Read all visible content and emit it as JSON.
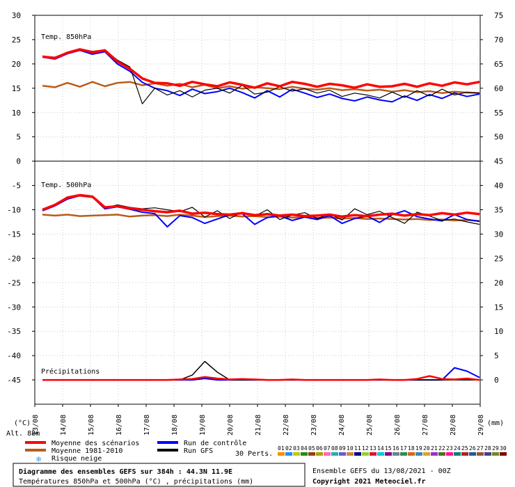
{
  "chart_data": {
    "type": "line",
    "title": "Diagramme des ensembles GEFS sur 384h : 44.3N 11.9E",
    "subtitle": "Températures 850hPa et 500hPa (°C) , précipitations (mm)",
    "left_unit": "(°C)",
    "right_unit": "(mm)",
    "altitude_label": "Alt. 88m",
    "left_ticks": [
      "30",
      "25",
      "20",
      "15",
      "10",
      "5",
      "0",
      "-5",
      "-10",
      "-15",
      "-20",
      "-25",
      "-30",
      "-35",
      "-40",
      "-45"
    ],
    "right_ticks": [
      "75",
      "70",
      "65",
      "60",
      "55",
      "50",
      "45",
      "40",
      "35",
      "30",
      "25",
      "20",
      "15",
      "10",
      "5",
      "0"
    ],
    "ylim": [
      -50,
      30
    ],
    "x_categories": [
      "13/08",
      "14/08",
      "15/08",
      "16/08",
      "17/08",
      "18/08",
      "19/08",
      "20/08",
      "21/08",
      "22/08",
      "23/08",
      "24/08",
      "25/08",
      "26/08",
      "27/08",
      "28/08",
      "29/08"
    ],
    "panels": {
      "t850": "Temp. 850hPa",
      "t500": "Temp. 500hPa",
      "precip": "Précipitations"
    },
    "legend": {
      "mean": "Moyenne des scénarios",
      "clim": "Moyenne 1981-2010",
      "snow": "Risque neige",
      "control": "Run de contrôle",
      "gfs": "Run GFS",
      "perts": "30 Perts."
    },
    "member_labels": [
      "01",
      "02",
      "03",
      "04",
      "05",
      "06",
      "07",
      "08",
      "09",
      "10",
      "11",
      "12",
      "13",
      "14",
      "15",
      "16",
      "17",
      "18",
      "19",
      "20",
      "21",
      "22",
      "23",
      "24",
      "25",
      "26",
      "27",
      "28",
      "29",
      "30"
    ],
    "member_colors": [
      "#ff8c00",
      "#1e90ff",
      "#c8c800",
      "#228b22",
      "#8b4513",
      "#b0a000",
      "#ff69b4",
      "#20b2aa",
      "#6a5acd",
      "#cd853f",
      "#000080",
      "#9acd32",
      "#dc143c",
      "#00ced1",
      "#8b008b",
      "#708090",
      "#2e8b57",
      "#d2691e",
      "#4682b4",
      "#daa520",
      "#9932cc",
      "#556b2f",
      "#ff1493",
      "#008080",
      "#b22222",
      "#1e5aa0",
      "#a0522d",
      "#483d8b",
      "#6b8e23",
      "#800000"
    ],
    "colors": {
      "mean": "#ff0000",
      "clim": "#b85c1a",
      "control": "#0000ff",
      "gfs": "#000000"
    },
    "series": {
      "t850_mean": [
        21.5,
        21.2,
        22.3,
        23.0,
        22.4,
        22.8,
        20.5,
        19.0,
        17.0,
        16.1,
        16.0,
        15.5,
        16.3,
        15.8,
        15.4,
        16.2,
        15.7,
        15.1,
        16.0,
        15.4,
        16.3,
        15.9,
        15.3,
        15.9,
        15.6,
        15.1,
        15.8,
        15.3,
        15.4,
        15.9,
        15.3,
        16.0,
        15.5,
        16.2,
        15.8,
        16.3
      ],
      "t850_clim": [
        15.5,
        15.2,
        16.1,
        15.3,
        16.3,
        15.4,
        16.1,
        16.3,
        15.6,
        16.0,
        15.5,
        15.9,
        15.2,
        15.7,
        15.0,
        15.4,
        14.9,
        15.2,
        15.0,
        14.8,
        15.3,
        14.9,
        14.7,
        15.0,
        14.6,
        14.8,
        14.5,
        14.7,
        14.3,
        14.6,
        14.2,
        14.4,
        14.0,
        14.3,
        14.1,
        14.0
      ],
      "t850_control": [
        21.4,
        21.0,
        22.1,
        22.8,
        22.0,
        22.5,
        20.0,
        18.5,
        16.2,
        15.0,
        14.5,
        13.5,
        14.8,
        13.9,
        14.3,
        15.0,
        14.1,
        13.0,
        14.5,
        13.2,
        14.8,
        14.0,
        13.1,
        13.8,
        12.9,
        12.4,
        13.2,
        12.6,
        12.2,
        13.4,
        12.5,
        13.7,
        12.9,
        14.0,
        13.3,
        13.8
      ],
      "t850_gfs": [
        21.6,
        21.4,
        22.4,
        23.1,
        22.6,
        22.9,
        20.8,
        19.4,
        11.8,
        15.0,
        13.6,
        14.5,
        13.2,
        14.6,
        15.0,
        14.0,
        15.6,
        13.8,
        14.2,
        15.3,
        14.4,
        14.9,
        14.0,
        14.6,
        13.3,
        14.0,
        13.6,
        13.0,
        14.2,
        13.1,
        14.5,
        13.4,
        14.8,
        13.6,
        14.2,
        14.0
      ],
      "t500_mean": [
        -10.0,
        -9.0,
        -7.5,
        -7.0,
        -7.3,
        -9.5,
        -9.3,
        -9.7,
        -10.0,
        -10.3,
        -10.5,
        -10.2,
        -10.8,
        -10.6,
        -10.9,
        -11.0,
        -10.7,
        -11.1,
        -10.9,
        -11.2,
        -11.0,
        -11.3,
        -11.2,
        -11.0,
        -11.4,
        -11.1,
        -11.3,
        -11.0,
        -10.8,
        -11.2,
        -10.9,
        -11.1,
        -10.7,
        -11.0,
        -10.6,
        -10.9
      ],
      "t500_clim": [
        -11.0,
        -11.2,
        -11.0,
        -11.3,
        -11.2,
        -11.1,
        -11.0,
        -11.4,
        -11.2,
        -11.1,
        -11.3,
        -11.0,
        -11.2,
        -11.5,
        -11.3,
        -11.2,
        -11.4,
        -11.3,
        -11.5,
        -11.4,
        -11.6,
        -11.5,
        -11.7,
        -11.6,
        -11.8,
        -11.7,
        -11.9,
        -11.8,
        -11.9,
        -12.0,
        -11.9,
        -12.1,
        -12.0,
        -12.2,
        -12.1,
        -12.3
      ],
      "t500_control": [
        -10.2,
        -9.2,
        -7.8,
        -7.1,
        -7.4,
        -9.8,
        -9.4,
        -9.9,
        -10.5,
        -10.8,
        -13.5,
        -11.2,
        -11.6,
        -12.8,
        -11.9,
        -11.0,
        -10.8,
        -13.0,
        -11.6,
        -11.2,
        -12.2,
        -11.5,
        -12.0,
        -11.2,
        -12.8,
        -11.8,
        -11.3,
        -12.6,
        -11.0,
        -10.2,
        -11.4,
        -11.9,
        -12.3,
        -11.0,
        -12.0,
        -12.4
      ],
      "t500_gfs": [
        -10.1,
        -9.1,
        -7.6,
        -7.2,
        -7.5,
        -9.6,
        -9.0,
        -9.5,
        -9.8,
        -9.6,
        -10.0,
        -10.4,
        -9.5,
        -11.5,
        -10.2,
        -11.8,
        -10.5,
        -11.3,
        -10.0,
        -12.0,
        -11.1,
        -10.6,
        -11.8,
        -10.9,
        -12.1,
        -9.8,
        -11.0,
        -10.3,
        -11.6,
        -12.8,
        -10.5,
        -11.3,
        -12.2,
        -11.9,
        -12.5,
        -13.0
      ],
      "precip_mean": [
        0,
        0,
        0,
        0,
        0,
        0,
        0,
        0,
        0,
        0,
        0,
        0.1,
        0.2,
        0.6,
        0.3,
        0.1,
        0.2,
        0.1,
        0,
        0,
        0.1,
        0,
        0,
        0,
        0,
        0,
        0,
        0.1,
        0,
        0,
        0.2,
        0.8,
        0.2,
        0.1,
        0.3,
        0
      ],
      "precip_control": [
        0,
        0,
        0,
        0,
        0,
        0,
        0,
        0,
        0,
        0,
        0,
        0,
        0,
        0.3,
        0,
        0,
        0,
        0,
        0,
        0,
        0,
        0,
        0,
        0,
        0,
        0,
        0,
        0,
        0,
        0,
        0,
        0,
        0,
        2.5,
        1.8,
        0.5
      ],
      "precip_gfs": [
        0,
        0,
        0,
        0,
        0,
        0,
        0,
        0,
        0,
        0,
        0,
        0,
        1.0,
        3.8,
        1.6,
        0,
        0,
        0,
        0,
        0,
        0,
        0,
        0,
        0,
        0,
        0,
        0,
        0,
        0,
        0,
        0,
        0,
        0,
        0,
        0,
        0
      ]
    }
  },
  "footer": {
    "run_info": "Ensemble GEFS du 13/08/2021 - 00Z",
    "copyright": "Copyright 2021 Meteociel.fr"
  }
}
